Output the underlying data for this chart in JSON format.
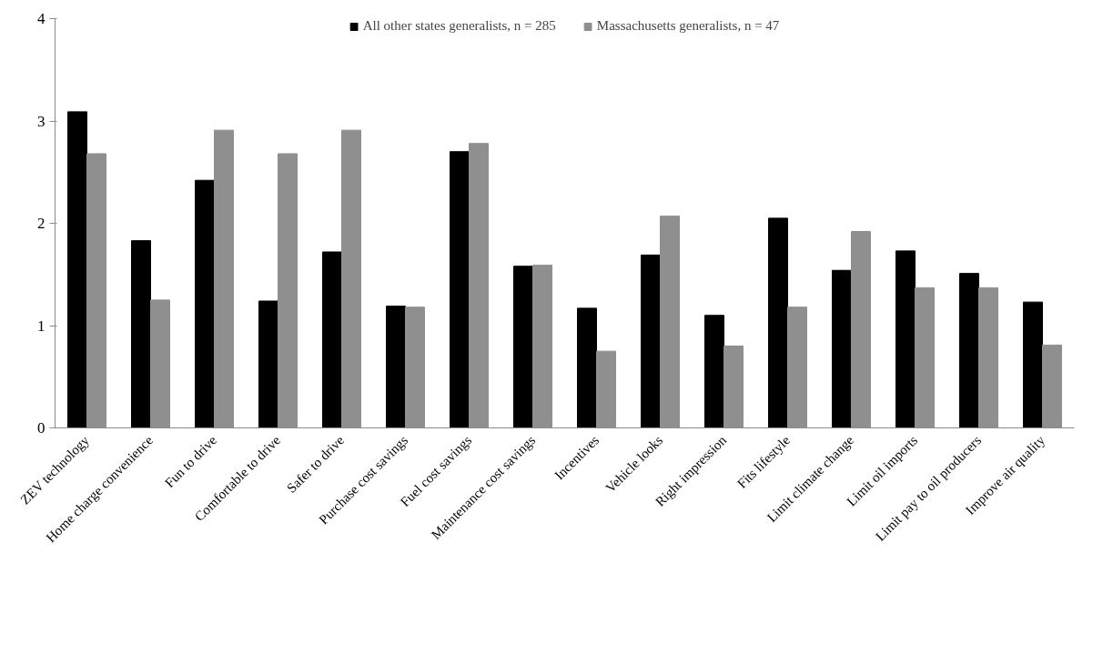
{
  "chart_data": {
    "type": "bar",
    "categories": [
      "ZEV technology",
      "Home charge convenience",
      "Fun to drive",
      "Comfortable to drive",
      "Safer to drive",
      "Purchase cost savings",
      "Fuel cost savings",
      "Maintenance cost savings",
      "Incentives",
      "Vehicle looks",
      "Right impression",
      "Fits lifestyle",
      "Limit climate change",
      "Limit oil imports",
      "Limit pay to oil producers",
      "Improve air quality"
    ],
    "series": [
      {
        "name": "All other states generalists, n = 285",
        "color": "#000000",
        "values": [
          3.09,
          1.83,
          2.42,
          1.24,
          1.72,
          1.19,
          2.7,
          1.58,
          1.17,
          1.69,
          1.1,
          2.05,
          1.54,
          1.73,
          1.51,
          1.23
        ]
      },
      {
        "name": "Massachusetts generalists, n = 47",
        "color": "#8f8f8f",
        "values": [
          2.68,
          1.25,
          2.91,
          2.68,
          2.91,
          1.18,
          2.78,
          1.59,
          0.75,
          2.07,
          0.8,
          1.18,
          1.92,
          1.37,
          1.37,
          0.81
        ]
      }
    ],
    "ylim": [
      0,
      4
    ],
    "yticks": [
      0,
      1,
      2,
      3,
      4
    ],
    "grid": false,
    "legend": "top"
  }
}
